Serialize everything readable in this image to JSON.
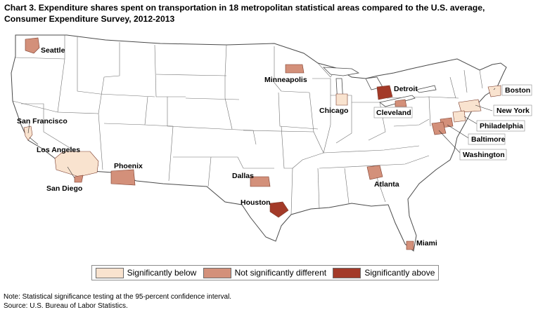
{
  "title": {
    "line1": "Chart 3. Expenditure shares spent on transportation in 18 metropolitan statistical areas compared to the U.S. average,",
    "line2": "Consumer Expenditure Survey, 2012-2013"
  },
  "colors": {
    "below": "#f9e3cf",
    "not_significant": "#d3907a",
    "above": "#a33a28",
    "state_fill": "#ffffff",
    "state_border": "#4a4a4a"
  },
  "legend": {
    "below": "Significantly below",
    "not_significant": "Not significantly different",
    "above": "Significantly above"
  },
  "areas": [
    {
      "name": "Seattle",
      "category": "not_significant"
    },
    {
      "name": "San Francisco",
      "category": "below"
    },
    {
      "name": "Los Angeles",
      "category": "below"
    },
    {
      "name": "San Diego",
      "category": "not_significant"
    },
    {
      "name": "Phoenix",
      "category": "not_significant"
    },
    {
      "name": "Minneapolis",
      "category": "not_significant"
    },
    {
      "name": "Dallas",
      "category": "not_significant"
    },
    {
      "name": "Houston",
      "category": "above"
    },
    {
      "name": "Chicago",
      "category": "below"
    },
    {
      "name": "Detroit",
      "category": "above"
    },
    {
      "name": "Cleveland",
      "category": "not_significant"
    },
    {
      "name": "Atlanta",
      "category": "not_significant"
    },
    {
      "name": "Miami",
      "category": "not_significant"
    },
    {
      "name": "Boston",
      "category": "below"
    },
    {
      "name": "New York",
      "category": "below"
    },
    {
      "name": "Philadelphia",
      "category": "below"
    },
    {
      "name": "Baltimore",
      "category": "not_significant"
    },
    {
      "name": "Washington",
      "category": "not_significant"
    }
  ],
  "notes": {
    "note": "Note: Statistical significance testing at the 95-percent confidence interval.",
    "source": "Source: U.S. Bureau of Labor Statistics."
  }
}
